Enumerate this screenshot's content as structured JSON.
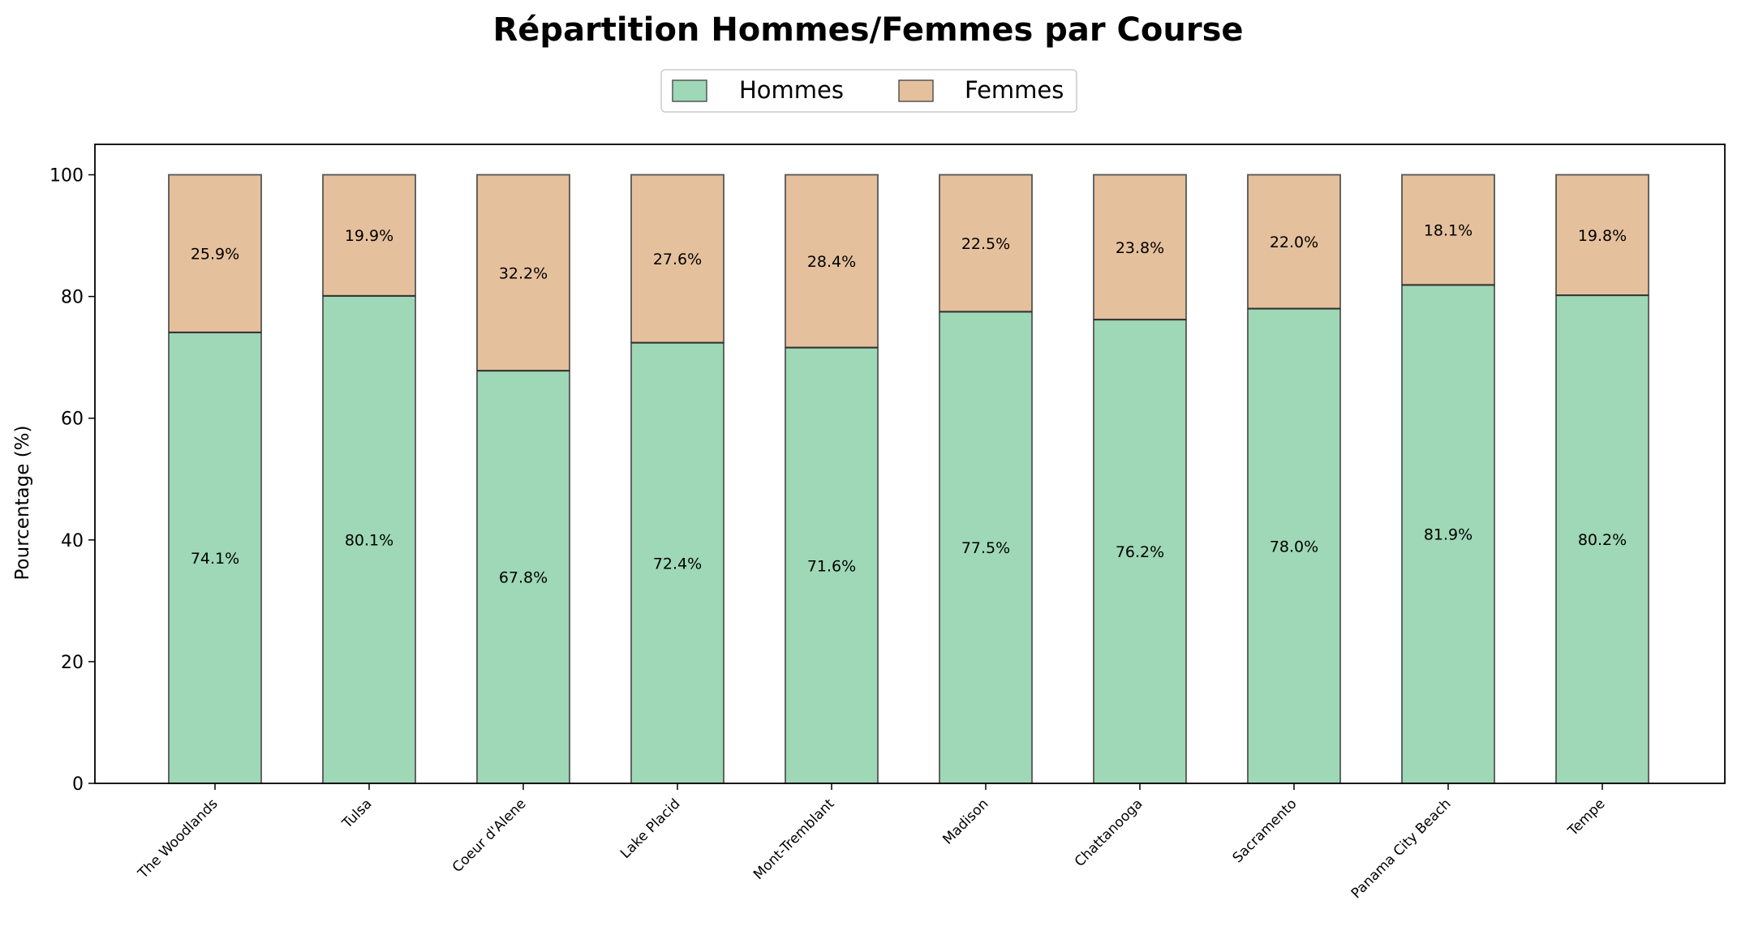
{
  "chart_data": {
    "type": "bar",
    "stacked": true,
    "title": "Répartition Hommes/Femmes par Course",
    "ylabel": "Pourcentage (%)",
    "xlabel": "",
    "ylim": [
      0,
      105
    ],
    "yticks": [
      0,
      20,
      40,
      60,
      80,
      100
    ],
    "grid": false,
    "legend_position": "top-center",
    "categories": [
      "The Woodlands",
      "Tulsa",
      "Coeur d'Alene",
      "Lake Placid",
      "Mont-Tremblant",
      "Madison",
      "Chattanooga",
      "Sacramento",
      "Panama City Beach",
      "Tempe"
    ],
    "series": [
      {
        "name": "Hommes",
        "color": "#9ed8b6",
        "values": [
          74.1,
          80.1,
          67.8,
          72.4,
          71.6,
          77.5,
          76.2,
          78.0,
          81.9,
          80.2
        ],
        "labels": [
          "74.1%",
          "80.1%",
          "67.8%",
          "72.4%",
          "71.6%",
          "77.5%",
          "76.2%",
          "78.0%",
          "81.9%",
          "80.2%"
        ]
      },
      {
        "name": "Femmes",
        "color": "#e5c09c",
        "values": [
          25.9,
          19.9,
          32.2,
          27.6,
          28.4,
          22.5,
          23.8,
          22.0,
          18.1,
          19.8
        ],
        "labels": [
          "25.9%",
          "19.9%",
          "32.2%",
          "27.6%",
          "28.4%",
          "22.5%",
          "23.8%",
          "22.0%",
          "18.1%",
          "19.8%"
        ]
      }
    ]
  }
}
